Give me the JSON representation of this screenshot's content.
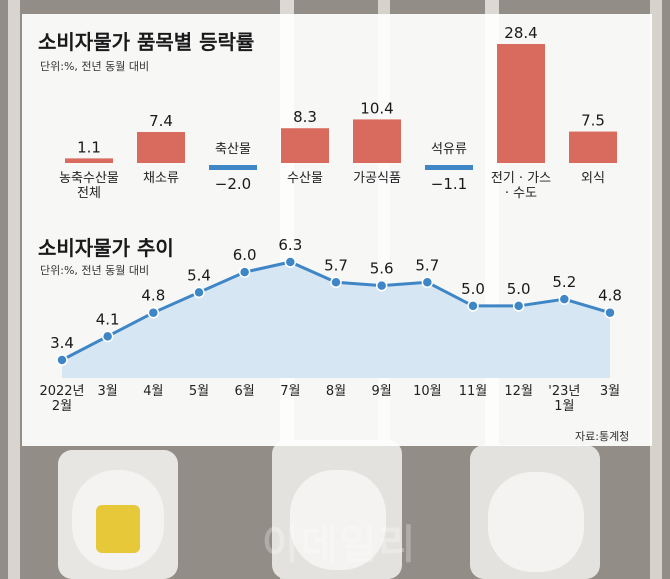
{
  "chart_data": [
    {
      "type": "bar",
      "title": "소비자물가 품목별 등락률",
      "unit_note": "단위:%, 전년 동월 대비",
      "categories": [
        "농축수산물 전체",
        "채소류",
        "축산물",
        "수산물",
        "가공식품",
        "석유류",
        "전기 · 가스 · 수도",
        "외식"
      ],
      "category_lines": [
        [
          "농축수산물",
          "전체"
        ],
        [
          "채소류"
        ],
        [
          "축산물"
        ],
        [
          "수산물"
        ],
        [
          "가공식품"
        ],
        [
          "석유류"
        ],
        [
          "전기 · 가스",
          "· 수도"
        ],
        [
          "외식"
        ]
      ],
      "values": [
        1.1,
        7.4,
        -2.0,
        8.3,
        10.4,
        -1.1,
        28.4,
        7.5
      ],
      "value_labels": [
        "1.1",
        "7.4",
        "−2.0",
        "8.3",
        "10.4",
        "−1.1",
        "28.4",
        "7.5"
      ],
      "ylim": [
        -2.0,
        28.4
      ],
      "grid": false,
      "colors": {
        "positive": "#d96b5e",
        "negative": "#3f86c6"
      }
    },
    {
      "type": "area",
      "title": "소비자물가 추이",
      "unit_note": "단위:%, 전년 동월 대비",
      "x": [
        "2022년 2월",
        "3월",
        "4월",
        "5월",
        "6월",
        "7월",
        "8월",
        "9월",
        "10월",
        "11월",
        "12월",
        "'23년 1월",
        "3월"
      ],
      "x_label_lines": [
        [
          "2022년",
          "2월"
        ],
        [
          "3월"
        ],
        [
          "4월"
        ],
        [
          "5월"
        ],
        [
          "6월"
        ],
        [
          "7월"
        ],
        [
          "8월"
        ],
        [
          "9월"
        ],
        [
          "10월"
        ],
        [
          "11월"
        ],
        [
          "12월"
        ],
        [
          "'23년",
          "1월"
        ],
        [
          "3월"
        ]
      ],
      "values": [
        3.4,
        4.1,
        4.8,
        5.4,
        6.0,
        6.3,
        5.7,
        5.6,
        5.7,
        5.0,
        5.0,
        5.2,
        4.8
      ],
      "value_labels": [
        "3.4",
        "4.1",
        "4.8",
        "5.4",
        "6.0",
        "6.3",
        "5.7",
        "5.6",
        "5.7",
        "5.0",
        "5.0",
        "5.2",
        "4.8"
      ],
      "ylim": [
        3.4,
        6.3
      ],
      "grid": false,
      "colors": {
        "line": "#3f86c6",
        "fill": "#d7e6f3",
        "marker": "#3f86c6"
      }
    }
  ],
  "source": "자료:통계청",
  "watermark": "이데일리"
}
